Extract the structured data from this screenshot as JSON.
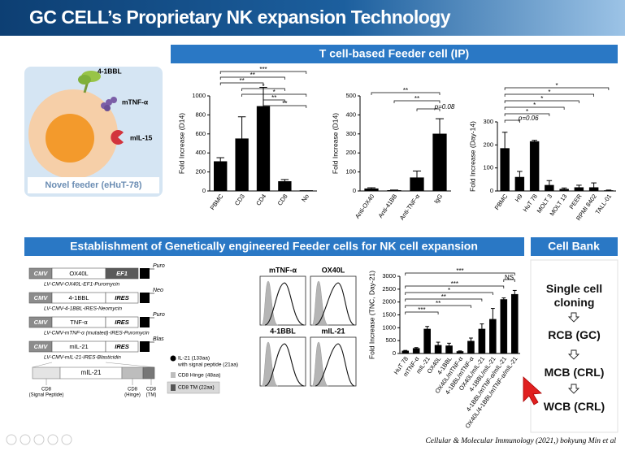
{
  "header": {
    "title": "GC CELL’s Proprietary NK expansion Technology"
  },
  "feeder": {
    "ligands": [
      "4-1BBL",
      "mTNF-α",
      "mIL-15"
    ],
    "caption": "Novel feeder (eHuT-78)"
  },
  "sections": [
    "T cell-based Feeder cell (IP)",
    "Establishment of Genetically engineered Feeder cells for NK cell expansion",
    "Cell Bank"
  ],
  "constructs": [
    {
      "parts": [
        "CMV",
        "OX40L",
        "EF1"
      ],
      "marker": "Puro",
      "label": "LV-CMV-OX40L-EF1-Puromycin"
    },
    {
      "parts": [
        "CMV",
        "4-1BBL",
        "IRES"
      ],
      "marker": "Neo",
      "label": "LV-CMV-4-1BBL-IRES-Neomycin"
    },
    {
      "parts": [
        "CMV",
        "TNF-α",
        "IRES"
      ],
      "marker": "Puro",
      "label": "LV-CMV-mTNF-α (mutated)-IRES-Puromycin"
    },
    {
      "parts": [
        "CMV",
        "mIL-21",
        "IRES"
      ],
      "marker": "Blas",
      "label": "LV-CMV-mIL-21-IRES-Blasticidin"
    }
  ],
  "mil21_detail": {
    "center": "mIL-21",
    "parts": [
      [
        "CD8",
        "(Signal Peptide)"
      ],
      [
        "CD8",
        "(Hinge)"
      ],
      [
        "CD8",
        "(TM)"
      ]
    ],
    "legend": [
      "IL-21 (133aa)",
      "with signal peptide (21aa)",
      "CD8 Hinge (48aa)",
      "CD8 TM (22aa)"
    ]
  },
  "flow_panels": [
    "mTNF-α",
    "OX40L",
    "4-1BBL",
    "mIL-21"
  ],
  "cell_bank": {
    "steps": [
      "Single cell cloning",
      "RCB (GC)",
      "MCB (CRL)",
      "WCB (CRL)"
    ]
  },
  "citation": "Cellular & Molecular Immunology (2021,) bokyung Min et al",
  "chart_data": [
    {
      "type": "bar",
      "ylabel": "Fold Increase (D14)",
      "color": "#000000",
      "categories": [
        "PBMC",
        "CD3",
        "CD4",
        "CD8",
        "No"
      ],
      "values": [
        310,
        550,
        890,
        100,
        5
      ],
      "errors": [
        40,
        230,
        200,
        20,
        0
      ],
      "ylim": [
        0,
        1000
      ],
      "yticks": [
        0,
        200,
        400,
        600,
        800,
        1000
      ],
      "annotations": [
        "***",
        "**",
        "**",
        "*",
        "*",
        "**",
        "**"
      ]
    },
    {
      "type": "bar",
      "ylabel": "Fold Increase (D14)",
      "color": "#000000",
      "categories": [
        "Anti-OX40",
        "Anti-41BB",
        "Anti-TNF-α",
        "IgG"
      ],
      "values": [
        12,
        3,
        70,
        300
      ],
      "errors": [
        5,
        2,
        35,
        80
      ],
      "ylim": [
        0,
        500
      ],
      "yticks": [
        0,
        100,
        200,
        300,
        400,
        500
      ],
      "annotations": [
        "**",
        "**",
        "p=0.08"
      ]
    },
    {
      "type": "bar",
      "ylabel": "Fold Increase (Day-14)",
      "color": "#000000",
      "categories": [
        "PBMC",
        "H9",
        "HuT 78",
        "MOLT 3",
        "MOLT 13",
        "PEER",
        "RPMI 8402",
        "TALL-01"
      ],
      "values": [
        185,
        60,
        215,
        25,
        8,
        15,
        15,
        2
      ],
      "errors": [
        70,
        25,
        5,
        20,
        5,
        10,
        20,
        2
      ],
      "ylim": [
        0,
        300
      ],
      "yticks": [
        0,
        100,
        200,
        300
      ],
      "annotations": [
        "*",
        "*",
        "*",
        "*",
        "*",
        "p=0.06"
      ]
    },
    {
      "type": "bar",
      "ylabel": "Fold Increase (TNC, Day-21)",
      "color": "#000000",
      "categories": [
        "HuT 78",
        "mTNF-α",
        "mIL-21",
        "OX40L",
        "4-1BBL",
        "OX40L/mTNF-α",
        "4-1BBL/mTNF-α",
        "OX40L/mIL-21",
        "4-1BBL/mIL-21",
        "4-1BBL/mTNF-α/mIL-21",
        "OX40L/4-1BBL/mTNF-α/mIL-21"
      ],
      "values": [
        100,
        200,
        950,
        320,
        300,
        80,
        480,
        950,
        1330,
        2100,
        2300
      ],
      "errors": [
        20,
        30,
        100,
        120,
        100,
        20,
        120,
        200,
        420,
        60,
        150
      ],
      "ylim": [
        0,
        3000
      ],
      "yticks": [
        0,
        500,
        1000,
        1500,
        2000,
        2500,
        3000
      ],
      "annotations": [
        "***",
        "NS",
        "***",
        "*",
        "**",
        "**",
        "***"
      ]
    }
  ]
}
